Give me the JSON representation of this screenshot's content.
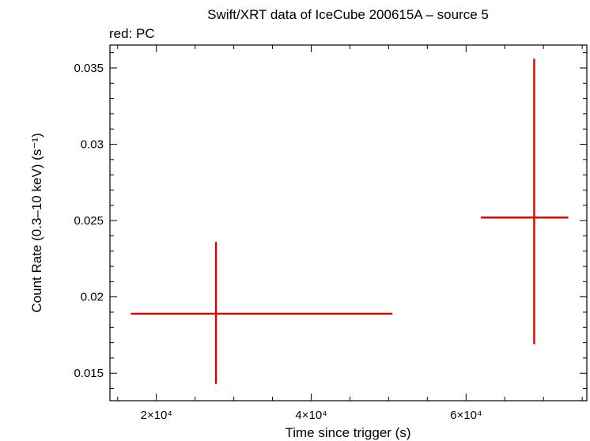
{
  "chart_data": {
    "type": "scatter",
    "title": "Swift/XRT data of IceCube 200615A – source 5",
    "subtitle": "red: PC",
    "xlabel": "Time since trigger (s)",
    "ylabel": "Count Rate (0.3–10 keV) (s⁻¹)",
    "xlim": [
      14000,
      75600
    ],
    "ylim": [
      0.0132,
      0.0365
    ],
    "x_ticks": [
      {
        "value": 20000,
        "label": "2×10⁴"
      },
      {
        "value": 40000,
        "label": "4×10⁴"
      },
      {
        "value": 60000,
        "label": "6×10⁴"
      }
    ],
    "y_ticks": [
      {
        "value": 0.015,
        "label": "0.015"
      },
      {
        "value": 0.02,
        "label": "0.02"
      },
      {
        "value": 0.025,
        "label": "0.025"
      },
      {
        "value": 0.03,
        "label": "0.03"
      },
      {
        "value": 0.035,
        "label": "0.035"
      }
    ],
    "grid": false,
    "series": [
      {
        "color": "#e00000",
        "points": [
          {
            "x": 27700,
            "x_err_low": 11000,
            "x_err_high": 22800,
            "y": 0.0189,
            "y_err_low": 0.0046,
            "y_err_high": 0.0047
          },
          {
            "x": 68800,
            "x_err_low": 6900,
            "x_err_high": 4400,
            "y": 0.0252,
            "y_err_low": 0.0083,
            "y_err_high": 0.0104
          }
        ]
      }
    ]
  }
}
